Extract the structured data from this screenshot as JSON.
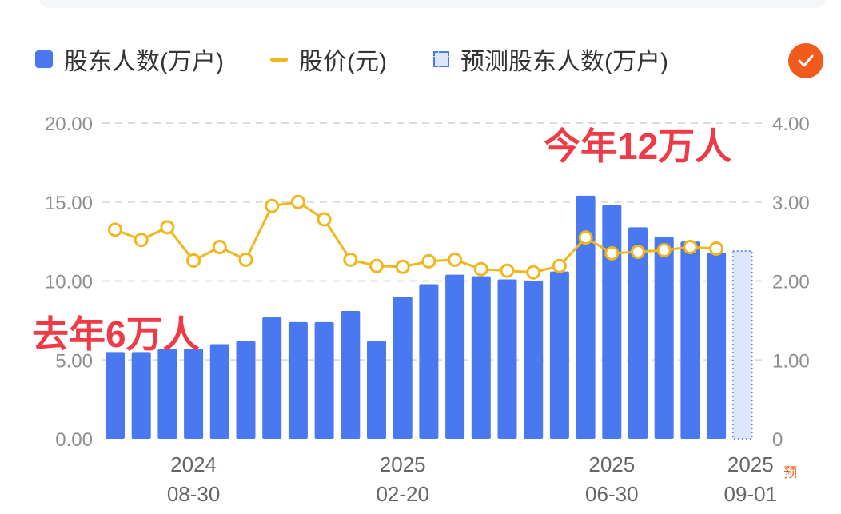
{
  "legend": {
    "bar_label": "股东人数(万户)",
    "line_label": "股价(元)",
    "pred_label": "预测股东人数(万户)",
    "colors": {
      "bar": "#4a78f0",
      "line": "#f2b61d",
      "pred": "#4a78f0",
      "check": "#f05a1a"
    }
  },
  "annotations": {
    "last_year": "去年6万人",
    "this_year": "今年12万人"
  },
  "chart_data": {
    "type": "bar",
    "title": "",
    "y_left": {
      "ticks": [
        "0.00",
        "5.00",
        "10.00",
        "15.00",
        "20.00"
      ],
      "range": [
        0,
        20
      ]
    },
    "y_right": {
      "ticks": [
        "0",
        "1.00",
        "2.00",
        "3.00",
        "4.00"
      ],
      "range": [
        0,
        4
      ]
    },
    "x_labels": [
      {
        "index": 3,
        "year": "2024",
        "date": "08-30"
      },
      {
        "index": 11,
        "year": "2025",
        "date": "02-20"
      },
      {
        "index": 19,
        "year": "2025",
        "date": "06-30"
      },
      {
        "index": 24,
        "year": "2025",
        "date": "09-01",
        "tag": "预"
      }
    ],
    "series": [
      {
        "name": "股东人数(万户)",
        "kind": "bar",
        "values": [
          5.5,
          5.5,
          5.7,
          5.7,
          6.0,
          6.2,
          7.7,
          7.4,
          7.4,
          8.1,
          6.2,
          9.0,
          9.8,
          10.4,
          10.3,
          10.1,
          10.0,
          10.6,
          15.4,
          14.8,
          13.4,
          12.8,
          12.5,
          11.8
        ]
      },
      {
        "name": "股价(元)",
        "kind": "line",
        "values": [
          2.65,
          2.52,
          2.68,
          2.26,
          2.43,
          2.27,
          2.95,
          3.0,
          2.78,
          2.27,
          2.19,
          2.18,
          2.25,
          2.27,
          2.15,
          2.13,
          2.11,
          2.19,
          2.55,
          2.35,
          2.37,
          2.39,
          2.43,
          2.41
        ]
      },
      {
        "name": "预测股东人数(万户)",
        "kind": "pred-bar",
        "index": 24,
        "value": 11.9
      }
    ]
  }
}
